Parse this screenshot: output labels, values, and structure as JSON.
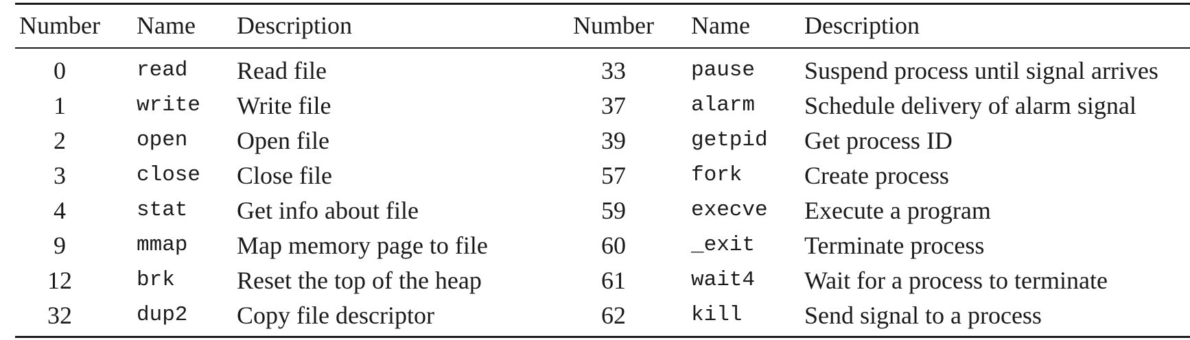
{
  "headers": {
    "left": {
      "number": "Number",
      "name": "Name",
      "description": "Description"
    },
    "right": {
      "number": "Number",
      "name": "Name",
      "description": "Description"
    }
  },
  "rows": [
    {
      "left": {
        "number": "0",
        "name": "read",
        "description": "Read file"
      },
      "right": {
        "number": "33",
        "name": "pause",
        "description": "Suspend process until signal arrives"
      }
    },
    {
      "left": {
        "number": "1",
        "name": "write",
        "description": "Write file"
      },
      "right": {
        "number": "37",
        "name": "alarm",
        "description": "Schedule delivery of alarm signal"
      }
    },
    {
      "left": {
        "number": "2",
        "name": "open",
        "description": "Open file"
      },
      "right": {
        "number": "39",
        "name": "getpid",
        "description": "Get process ID"
      }
    },
    {
      "left": {
        "number": "3",
        "name": "close",
        "description": "Close file"
      },
      "right": {
        "number": "57",
        "name": "fork",
        "description": "Create process"
      }
    },
    {
      "left": {
        "number": "4",
        "name": "stat",
        "description": "Get info about file"
      },
      "right": {
        "number": "59",
        "name": "execve",
        "description": "Execute a program"
      }
    },
    {
      "left": {
        "number": "9",
        "name": "mmap",
        "description": "Map memory page to file"
      },
      "right": {
        "number": "60",
        "name": "_exit",
        "description": "Terminate process"
      }
    },
    {
      "left": {
        "number": "12",
        "name": "brk",
        "description": "Reset the top of the heap"
      },
      "right": {
        "number": "61",
        "name": "wait4",
        "description": "Wait for a process to terminate"
      }
    },
    {
      "left": {
        "number": "32",
        "name": "dup2",
        "description": "Copy file descriptor"
      },
      "right": {
        "number": "62",
        "name": "kill",
        "description": "Send signal to a process"
      }
    }
  ]
}
